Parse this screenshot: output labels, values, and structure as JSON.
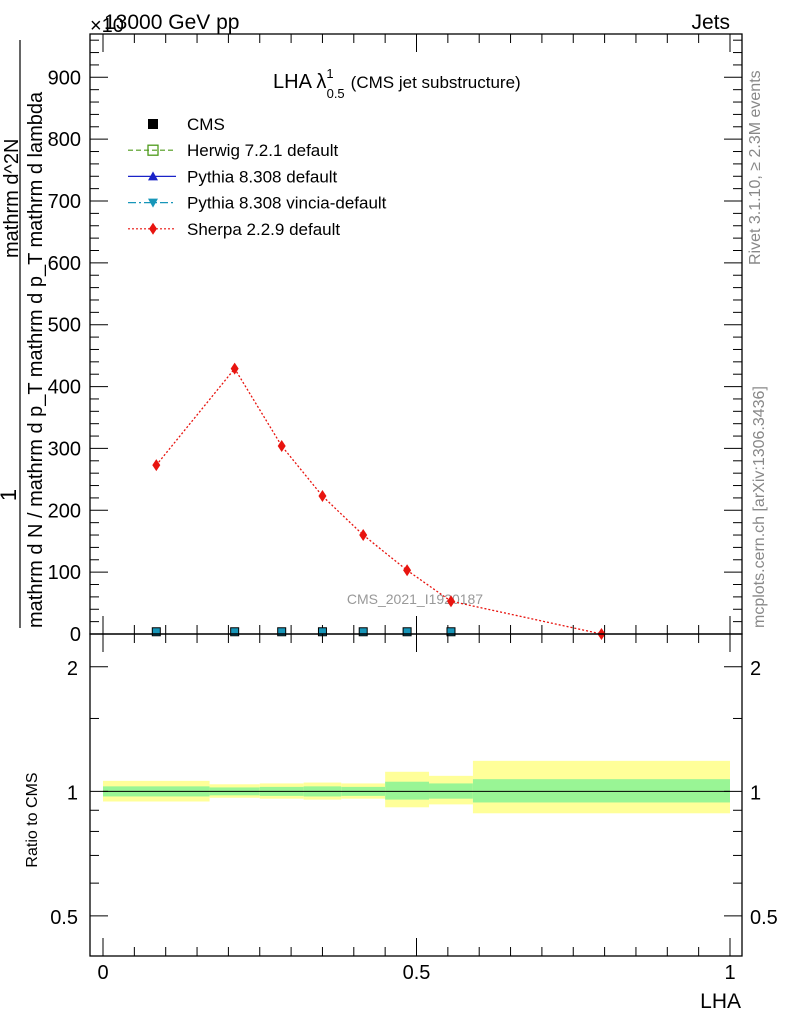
{
  "header": {
    "energy": "13000 GeV pp",
    "process": "Jets",
    "exponent_label": "×10"
  },
  "sidebar": {
    "rivet": "Rivet 3.1.10, ≥ 2.3M events",
    "source": "mcplots.cern.ch [arXiv:1306.3436]"
  },
  "watermark": "CMS_2021_I1920187",
  "axes": {
    "ylabel_top": "1",
    "ylabel_main": "mathrm d N / mathrm d p_T mathrm d p_T mathrm d lambda",
    "ylabel_sub": "mathrm d^2N",
    "ratio_ylabel": "Ratio to CMS",
    "xlabel": "LHA"
  },
  "legend": {
    "title": "LHA λ",
    "title_sup": "1",
    "title_sub": "0.5",
    "title_suffix": "(CMS jet substructure)",
    "entries": [
      {
        "name": "CMS",
        "color": "#000000",
        "marker": "square-filled"
      },
      {
        "name": "Herwig 7.2.1 default",
        "color": "#4d9a1a",
        "marker": "square-open"
      },
      {
        "name": "Pythia 8.308 default",
        "color": "#1a23c8",
        "marker": "triangle-up"
      },
      {
        "name": "Pythia 8.308 vincia-default",
        "color": "#1796b9",
        "marker": "triangle-down"
      },
      {
        "name": "Sherpa 2.2.9 default",
        "color": "#e8140f",
        "marker": "diamond"
      }
    ]
  },
  "chart_data": [
    {
      "type": "line",
      "panel": "main",
      "xlim": [
        0,
        1
      ],
      "ylim": [
        0,
        970
      ],
      "yticks": [
        0,
        100,
        200,
        300,
        400,
        500,
        600,
        700,
        800,
        900
      ],
      "ytick_labels": [
        "0",
        "100",
        "200",
        "300",
        "400",
        "500",
        "600",
        "700",
        "800",
        "900"
      ],
      "series": [
        {
          "name": "Sherpa 2.2.9 default",
          "x": [
            0.085,
            0.21,
            0.285,
            0.35,
            0.415,
            0.485,
            0.555,
            0.795
          ],
          "y": [
            273,
            429,
            304,
            223,
            160,
            103,
            53,
            0
          ]
        },
        {
          "name": "CMS",
          "x": [
            0.085,
            0.21,
            0.285,
            0.35,
            0.415,
            0.485,
            0.555
          ],
          "y": [
            2,
            2,
            2,
            2,
            2,
            2,
            2
          ]
        },
        {
          "name": "Pythia 8.308 vincia-default",
          "x": [
            0.085,
            0.21,
            0.285,
            0.35,
            0.415,
            0.485,
            0.555
          ],
          "y": [
            2,
            2,
            2,
            2,
            2,
            2,
            2
          ]
        }
      ]
    },
    {
      "type": "area",
      "panel": "ratio",
      "xlim": [
        0,
        1
      ],
      "ylim": [
        0.4,
        2.4
      ],
      "scale": "log",
      "yticks": [
        0.5,
        1,
        2
      ],
      "ytick_labels": [
        "0.5",
        "1",
        "2"
      ],
      "xticks": [
        0,
        0.5,
        1
      ],
      "xtick_labels": [
        "0",
        "0.5",
        "1"
      ],
      "bins": [
        {
          "x0": 0.0,
          "x1": 0.17,
          "inner": [
            0.972,
            1.028
          ],
          "outer": [
            0.945,
            1.06
          ]
        },
        {
          "x0": 0.17,
          "x1": 0.25,
          "inner": [
            0.978,
            1.022
          ],
          "outer": [
            0.965,
            1.04
          ]
        },
        {
          "x0": 0.25,
          "x1": 0.32,
          "inner": [
            0.975,
            1.025
          ],
          "outer": [
            0.96,
            1.045
          ]
        },
        {
          "x0": 0.32,
          "x1": 0.38,
          "inner": [
            0.972,
            1.028
          ],
          "outer": [
            0.955,
            1.05
          ]
        },
        {
          "x0": 0.38,
          "x1": 0.45,
          "inner": [
            0.975,
            1.025
          ],
          "outer": [
            0.96,
            1.045
          ]
        },
        {
          "x0": 0.45,
          "x1": 0.52,
          "inner": [
            0.955,
            1.055
          ],
          "outer": [
            0.915,
            1.115
          ]
        },
        {
          "x0": 0.52,
          "x1": 0.59,
          "inner": [
            0.96,
            1.045
          ],
          "outer": [
            0.93,
            1.09
          ]
        },
        {
          "x0": 0.59,
          "x1": 1.0,
          "inner": [
            0.94,
            1.07
          ],
          "outer": [
            0.885,
            1.185
          ]
        }
      ],
      "reference": 1.0
    }
  ],
  "colors": {
    "inner_band": "#99f595",
    "outer_band": "#ffff99"
  }
}
